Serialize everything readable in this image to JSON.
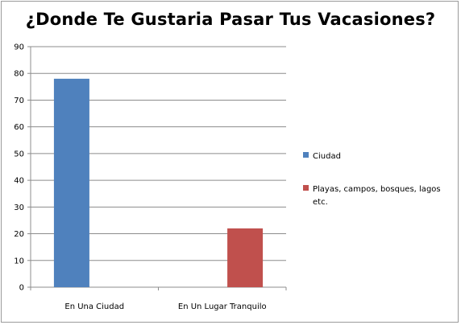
{
  "chart_data": {
    "type": "bar",
    "title": "¿Donde Te Gustaria Pasar Tus Vacasiones?",
    "xlabel": "",
    "ylabel": "",
    "categories": [
      "En Una Ciudad",
      "En Un Lugar Tranquilo"
    ],
    "series": [
      {
        "name": "Ciudad",
        "values": [
          78,
          null
        ],
        "color": "#4F81BD"
      },
      {
        "name": "Playas, campos, bosques, lagos etc.",
        "values": [
          null,
          22
        ],
        "color": "#C0504D"
      }
    ],
    "ylim": [
      0,
      90
    ],
    "yticks": [
      0,
      10,
      20,
      30,
      40,
      50,
      60,
      70,
      80,
      90
    ],
    "grid": true,
    "legend_position": "right"
  },
  "legend_lines": {
    "ciudad": [
      "Ciudad"
    ],
    "playas": [
      "Playas, campos, bosques, lagos",
      "etc."
    ]
  }
}
